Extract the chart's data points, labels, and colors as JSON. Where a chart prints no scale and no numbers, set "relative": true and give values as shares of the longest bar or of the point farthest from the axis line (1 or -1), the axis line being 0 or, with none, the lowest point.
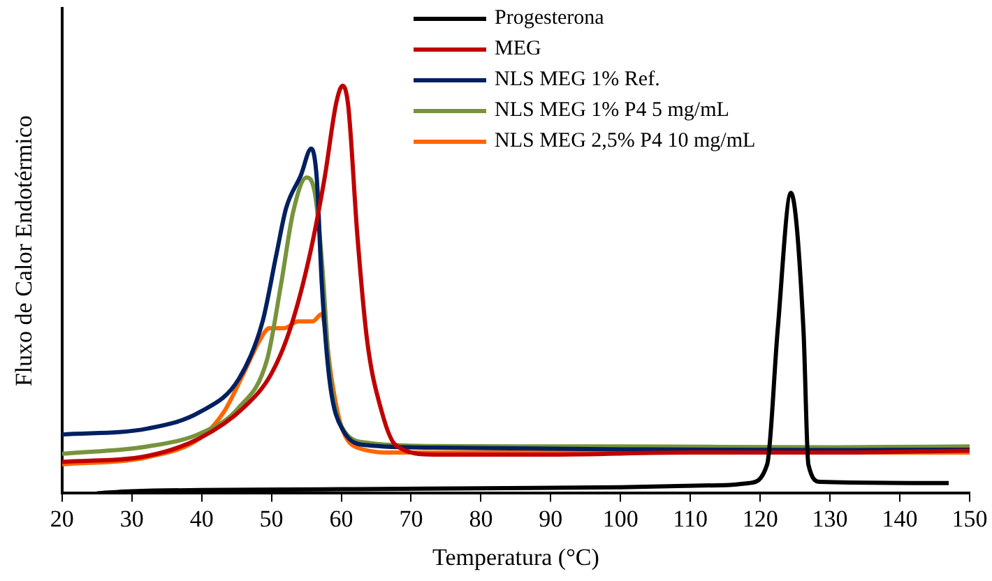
{
  "chart_data": {
    "type": "line",
    "relative": true,
    "xlabel": "Temperatura (°C)",
    "ylabel": "Fluxo de Calor Endotérmico",
    "xlim": [
      20,
      150
    ],
    "xticks": [
      20,
      30,
      40,
      50,
      60,
      70,
      80,
      90,
      100,
      110,
      120,
      130,
      140,
      150
    ],
    "legend": "top right",
    "marker": "none",
    "line_style": "solid",
    "series": [
      {
        "name": "Progesterona",
        "color": "#000000",
        "x": [
          25,
          30,
          60,
          100,
          115,
          118.4,
          121,
          122.5,
          124.4,
          126.2,
          126.9,
          128.6,
          147
        ],
        "values": [
          0,
          0.005,
          0.01,
          0.015,
          0.02,
          0.025,
          0.071,
          0.4,
          0.737,
          0.4,
          0.071,
          0.028,
          0.025
        ]
      },
      {
        "name": "MEG",
        "color": "#c00000",
        "x": [
          20,
          32.3,
          39.8,
          46,
          50,
          52.8,
          55.5,
          57.6,
          59.3,
          60.2,
          61,
          62.3,
          63.7,
          65.8,
          67.8,
          73.3,
          90,
          110,
          130,
          150
        ],
        "values": [
          0.077,
          0.092,
          0.136,
          0.21,
          0.294,
          0.41,
          0.586,
          0.773,
          0.96,
          1,
          0.95,
          0.633,
          0.375,
          0.2,
          0.118,
          0.095,
          0.095,
          0.1,
          0.1,
          0.105
        ]
      },
      {
        "name": "NLS MEG 1% Ref.",
        "color": "#002060",
        "x": [
          20,
          32.3,
          39.8,
          45.3,
          48.7,
          50.7,
          52.1,
          54.2,
          55.7,
          56.5,
          57.2,
          58.3,
          60.3,
          63.7,
          73.3,
          100,
          130,
          150
        ],
        "values": [
          0.144,
          0.159,
          0.2,
          0.28,
          0.42,
          0.586,
          0.7,
          0.78,
          0.846,
          0.77,
          0.516,
          0.28,
          0.153,
          0.118,
          0.112,
          0.108,
          0.106,
          0.107
        ]
      },
      {
        "name": "NLS MEG 1% P4 5 mg/mL",
        "color": "#77933c",
        "x": [
          20,
          32.3,
          39.8,
          45.3,
          49.4,
          51.4,
          53.1,
          55,
          56.2,
          57.2,
          58.3,
          60,
          63.7,
          73.3,
          100,
          130,
          150
        ],
        "values": [
          0.097,
          0.115,
          0.147,
          0.21,
          0.33,
          0.516,
          0.69,
          0.775,
          0.738,
          0.574,
          0.305,
          0.165,
          0.124,
          0.116,
          0.115,
          0.113,
          0.115
        ]
      },
      {
        "name": "NLS MEG 2,5% P4 10 mg/mL",
        "color": "#ff6600",
        "x": [
          20,
          32.3,
          39.8,
          43.2,
          46,
          48.3,
          49.7,
          51.8,
          53.8,
          55.9,
          57.2,
          57.9,
          58.6,
          60,
          62.3,
          67.8,
          90,
          120,
          150
        ],
        "values": [
          0.071,
          0.089,
          0.136,
          0.2,
          0.294,
          0.375,
          0.405,
          0.405,
          0.422,
          0.422,
          0.44,
          0.375,
          0.282,
          0.165,
          0.112,
          0.1,
          0.1,
          0.1,
          0.1
        ]
      }
    ]
  }
}
